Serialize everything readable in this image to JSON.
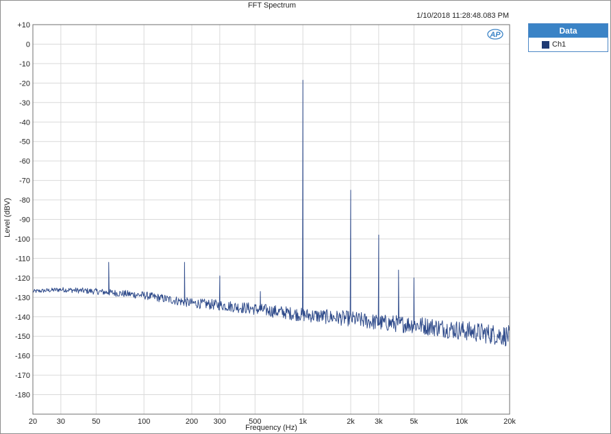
{
  "chart_data": {
    "type": "line",
    "title": "FFT Spectrum",
    "timestamp": "1/10/2018 11:28:48.083 PM",
    "xlabel": "Frequency (Hz)",
    "ylabel": "Level (dBV)",
    "x_scale": "log",
    "xlim": [
      20,
      20000
    ],
    "ylim": [
      -190,
      10
    ],
    "grid": true,
    "x_ticks": [
      {
        "value": 20,
        "label": "20"
      },
      {
        "value": 30,
        "label": "30"
      },
      {
        "value": 50,
        "label": "50"
      },
      {
        "value": 100,
        "label": "100"
      },
      {
        "value": 200,
        "label": "200"
      },
      {
        "value": 300,
        "label": "300"
      },
      {
        "value": 500,
        "label": "500"
      },
      {
        "value": 1000,
        "label": "1k"
      },
      {
        "value": 2000,
        "label": "2k"
      },
      {
        "value": 3000,
        "label": "3k"
      },
      {
        "value": 5000,
        "label": "5k"
      },
      {
        "value": 10000,
        "label": "10k"
      },
      {
        "value": 20000,
        "label": "20k"
      }
    ],
    "y_ticks": [
      {
        "value": 10,
        "label": "+10"
      },
      {
        "value": 0,
        "label": "0"
      },
      {
        "value": -10,
        "label": "-10"
      },
      {
        "value": -20,
        "label": "-20"
      },
      {
        "value": -30,
        "label": "-30"
      },
      {
        "value": -40,
        "label": "-40"
      },
      {
        "value": -50,
        "label": "-50"
      },
      {
        "value": -60,
        "label": "-60"
      },
      {
        "value": -70,
        "label": "-70"
      },
      {
        "value": -80,
        "label": "-80"
      },
      {
        "value": -90,
        "label": "-90"
      },
      {
        "value": -100,
        "label": "-100"
      },
      {
        "value": -110,
        "label": "-110"
      },
      {
        "value": -120,
        "label": "-120"
      },
      {
        "value": -130,
        "label": "-130"
      },
      {
        "value": -140,
        "label": "-140"
      },
      {
        "value": -150,
        "label": "-150"
      },
      {
        "value": -160,
        "label": "-160"
      },
      {
        "value": -170,
        "label": "-170"
      },
      {
        "value": -180,
        "label": "-180"
      }
    ],
    "series": [
      {
        "name": "Ch1",
        "color": "#2e4a8a",
        "noise_floor": [
          {
            "f": 20,
            "db": -127
          },
          {
            "f": 30,
            "db": -126
          },
          {
            "f": 50,
            "db": -127
          },
          {
            "f": 100,
            "db": -129
          },
          {
            "f": 200,
            "db": -133
          },
          {
            "f": 300,
            "db": -134
          },
          {
            "f": 500,
            "db": -136
          },
          {
            "f": 1000,
            "db": -139
          },
          {
            "f": 2000,
            "db": -141
          },
          {
            "f": 3000,
            "db": -143
          },
          {
            "f": 5000,
            "db": -144
          },
          {
            "f": 10000,
            "db": -147
          },
          {
            "f": 20000,
            "db": -150
          }
        ],
        "peaks": [
          {
            "f": 60,
            "db": -112
          },
          {
            "f": 180,
            "db": -112
          },
          {
            "f": 300,
            "db": -119
          },
          {
            "f": 540,
            "db": -127
          },
          {
            "f": 1000,
            "db": -18.5
          },
          {
            "f": 2000,
            "db": -75
          },
          {
            "f": 3000,
            "db": -98
          },
          {
            "f": 4000,
            "db": -116
          },
          {
            "f": 5000,
            "db": -120
          }
        ]
      }
    ]
  },
  "legend": {
    "header": "Data",
    "items": [
      {
        "label": "Ch1",
        "color": "#1f3b73"
      }
    ]
  },
  "logo_text": "AP"
}
